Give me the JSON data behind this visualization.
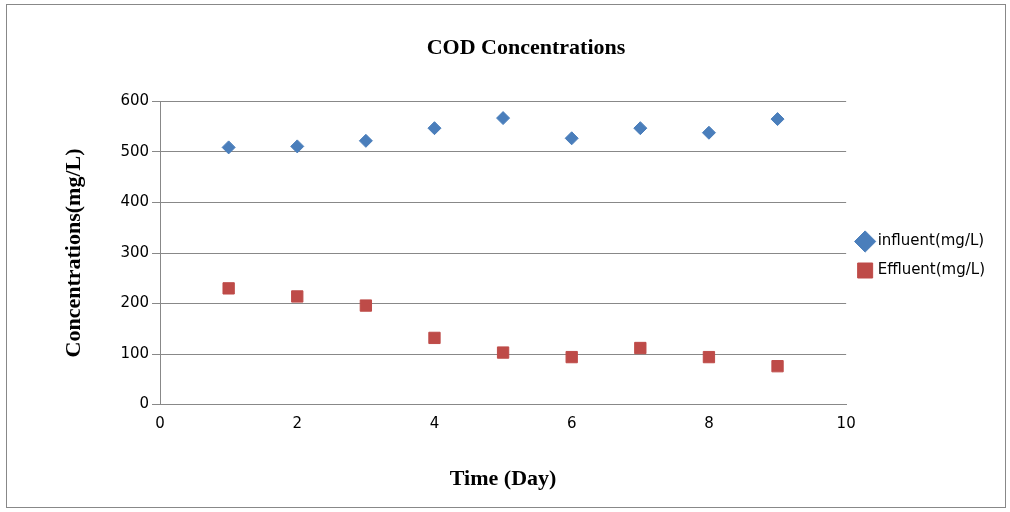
{
  "chart_data": {
    "type": "scatter",
    "title": "COD Concentrations",
    "xlabel": "Time (Day)",
    "ylabel": "Concentrations(mg/L)",
    "x": [
      1,
      2,
      3,
      4,
      5,
      6,
      7,
      8,
      9
    ],
    "series": [
      {
        "name": "influent(mg/L)",
        "color": "#4a7ebb",
        "marker": "diamond",
        "values": [
          509,
          511,
          522,
          547,
          567,
          527,
          547,
          538,
          565
        ]
      },
      {
        "name": "Effluent(mg/L)",
        "color": "#be4b48",
        "marker": "square",
        "values": [
          230,
          214,
          196,
          132,
          103,
          94,
          112,
          94,
          76
        ]
      }
    ],
    "xlim": [
      0,
      10
    ],
    "xticks": [
      0,
      2,
      4,
      6,
      8,
      10
    ],
    "ylim": [
      0,
      600
    ],
    "yticks": [
      0,
      100,
      200,
      300,
      400,
      500,
      600
    ],
    "grid": "y",
    "legend": "right"
  }
}
